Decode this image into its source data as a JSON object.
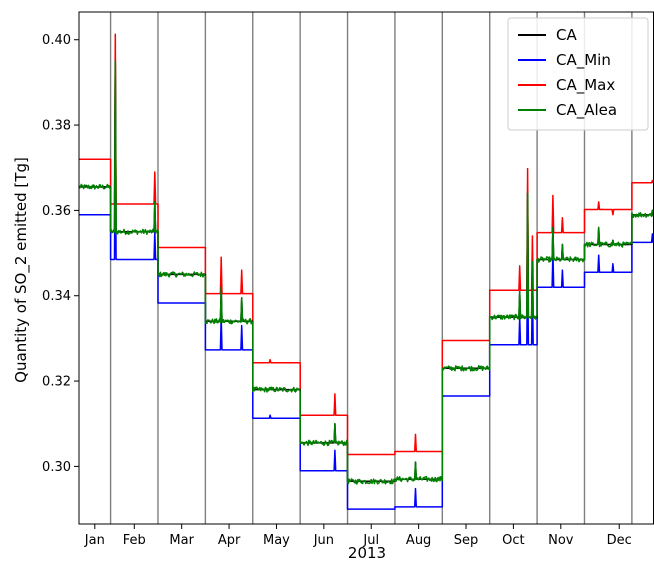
{
  "chart_data": {
    "type": "line",
    "xlabel": "2013",
    "ylabel": "Quantity of SO_2 emitted [Tg]",
    "months": [
      "Jan",
      "Feb",
      "Mar",
      "Apr",
      "May",
      "Jun",
      "Jul",
      "Aug",
      "Sep",
      "Oct",
      "Nov",
      "Dec"
    ],
    "xlim": [
      "2013-01-01",
      "2013-12-31"
    ],
    "ylim": [
      0.2865,
      0.4065
    ],
    "yticks": [
      0.3,
      0.32,
      0.34,
      0.36,
      0.38,
      0.4
    ],
    "ytick_labels": [
      "0.30",
      "0.32",
      "0.34",
      "0.36",
      "0.38",
      "0.40"
    ],
    "month_boundaries": [
      "2013-01-21",
      "2013-02-20",
      "2013-03-22",
      "2013-04-21",
      "2013-05-21",
      "2013-06-20",
      "2013-07-20",
      "2013-08-19",
      "2013-09-18",
      "2013-10-18",
      "2013-11-17",
      "2013-12-17"
    ],
    "segments": [
      {
        "start": "2013-01-01",
        "end": "2013-01-21",
        "ca": 0.3655,
        "min": 0.359,
        "max": 0.372
      },
      {
        "start": "2013-01-21",
        "end": "2013-02-20",
        "ca": 0.355,
        "min": 0.3485,
        "max": 0.3615
      },
      {
        "start": "2013-02-20",
        "end": "2013-03-22",
        "ca": 0.345,
        "min": 0.3383,
        "max": 0.3513
      },
      {
        "start": "2013-03-22",
        "end": "2013-04-21",
        "ca": 0.334,
        "min": 0.3273,
        "max": 0.3405
      },
      {
        "start": "2013-04-21",
        "end": "2013-05-21",
        "ca": 0.318,
        "min": 0.3113,
        "max": 0.3243
      },
      {
        "start": "2013-05-21",
        "end": "2013-06-20",
        "ca": 0.3055,
        "min": 0.299,
        "max": 0.312
      },
      {
        "start": "2013-06-20",
        "end": "2013-07-20",
        "ca": 0.2965,
        "min": 0.29,
        "max": 0.3028
      },
      {
        "start": "2013-07-20",
        "end": "2013-08-19",
        "ca": 0.297,
        "min": 0.2905,
        "max": 0.3035
      },
      {
        "start": "2013-08-19",
        "end": "2013-09-18",
        "ca": 0.323,
        "min": 0.3165,
        "max": 0.3295
      },
      {
        "start": "2013-09-18",
        "end": "2013-10-18",
        "ca": 0.335,
        "min": 0.3285,
        "max": 0.3413
      },
      {
        "start": "2013-10-18",
        "end": "2013-11-17",
        "ca": 0.3485,
        "min": 0.342,
        "max": 0.3548
      },
      {
        "start": "2013-11-17",
        "end": "2013-12-17",
        "ca": 0.352,
        "min": 0.3455,
        "max": 0.3602
      },
      {
        "start": "2013-12-17",
        "end": "2013-12-31",
        "ca": 0.359,
        "min": 0.3525,
        "max": 0.3665
      }
    ],
    "spikes": [
      {
        "date": "2013-01-24",
        "ca": 0.395,
        "min": 0.382,
        "max": 0.4013
      },
      {
        "date": "2013-02-18",
        "ca": 0.362,
        "min": 0.355,
        "max": 0.369
      },
      {
        "date": "2013-04-01",
        "ca": 0.342,
        "min": 0.335,
        "max": 0.349
      },
      {
        "date": "2013-04-14",
        "ca": 0.3395,
        "min": 0.333,
        "max": 0.346
      },
      {
        "date": "2013-05-02",
        "ca": 0.3185,
        "min": 0.312,
        "max": 0.325
      },
      {
        "date": "2013-06-12",
        "ca": 0.31,
        "min": 0.3038,
        "max": 0.317
      },
      {
        "date": "2013-08-02",
        "ca": 0.301,
        "min": 0.2948,
        "max": 0.3075
      },
      {
        "date": "2013-10-07",
        "ca": 0.341,
        "min": 0.335,
        "max": 0.347
      },
      {
        "date": "2013-10-12",
        "ca": 0.364,
        "min": 0.348,
        "max": 0.3698
      },
      {
        "date": "2013-10-15",
        "ca": 0.348,
        "min": 0.342,
        "max": 0.354
      },
      {
        "date": "2013-10-28",
        "ca": 0.356,
        "min": 0.35,
        "max": 0.3635
      },
      {
        "date": "2013-11-03",
        "ca": 0.352,
        "min": 0.346,
        "max": 0.3583
      },
      {
        "date": "2013-11-26",
        "ca": 0.356,
        "min": 0.3495,
        "max": 0.362
      },
      {
        "date": "2013-12-05",
        "ca": 0.353,
        "min": 0.3475,
        "max": 0.359
      },
      {
        "date": "2013-12-30",
        "ca": 0.36,
        "min": 0.3545,
        "max": 0.367
      }
    ],
    "series": [
      {
        "name": "CA",
        "color": "#000000"
      },
      {
        "name": "CA_Min",
        "color": "#0000ff"
      },
      {
        "name": "CA_Max",
        "color": "#ff0000"
      },
      {
        "name": "CA_Alea",
        "color": "#008000"
      }
    ],
    "legend_position": "top-right",
    "grid": false
  }
}
